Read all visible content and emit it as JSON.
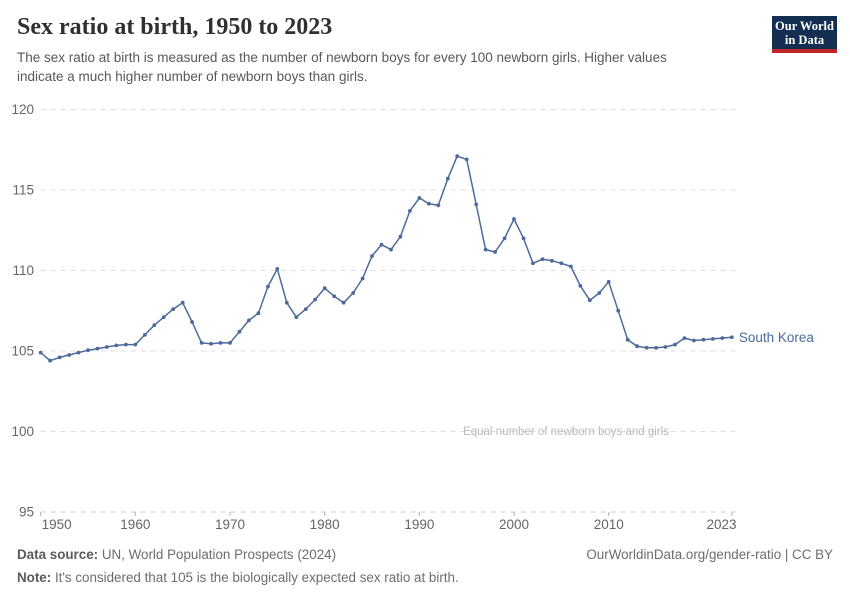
{
  "header": {
    "title": "Sex ratio at birth, 1950 to 2023",
    "subtitle": "The sex ratio at birth is measured as the number of newborn boys for every 100 newborn girls. Higher values indicate a much higher number of newborn boys than girls.",
    "logo": {
      "line1": "Our World",
      "line2": "in Data"
    }
  },
  "chart_data": {
    "type": "line",
    "title": "Sex ratio at birth, 1950 to 2023",
    "xlabel": "",
    "ylabel": "",
    "xlim": [
      1950,
      2023
    ],
    "ylim": [
      95,
      120
    ],
    "x_ticks": [
      1950,
      1960,
      1970,
      1980,
      1990,
      2000,
      2010,
      2023
    ],
    "y_ticks": [
      95,
      100,
      105,
      110,
      115,
      120
    ],
    "grid": "horizontal-dashed",
    "legend_position": "end-of-line-label",
    "annotation": "Equal number of newborn boys and girls",
    "annotation_value": 100,
    "series": [
      {
        "name": "South Korea",
        "color": "#4c6a9c",
        "x": [
          1950,
          1951,
          1952,
          1953,
          1954,
          1955,
          1956,
          1957,
          1958,
          1959,
          1960,
          1961,
          1962,
          1963,
          1964,
          1965,
          1966,
          1967,
          1968,
          1969,
          1970,
          1971,
          1972,
          1973,
          1974,
          1975,
          1976,
          1977,
          1978,
          1979,
          1980,
          1981,
          1982,
          1983,
          1984,
          1985,
          1986,
          1987,
          1988,
          1989,
          1990,
          1991,
          1992,
          1993,
          1994,
          1995,
          1996,
          1997,
          1998,
          1999,
          2000,
          2001,
          2002,
          2003,
          2004,
          2005,
          2006,
          2007,
          2008,
          2009,
          2010,
          2011,
          2012,
          2013,
          2014,
          2015,
          2016,
          2017,
          2018,
          2019,
          2020,
          2021,
          2022,
          2023
        ],
        "values": [
          104.9,
          104.4,
          104.6,
          104.75,
          104.9,
          105.05,
          105.15,
          105.25,
          105.35,
          105.4,
          105.4,
          106.0,
          106.6,
          107.1,
          107.6,
          108.0,
          106.8,
          105.5,
          105.45,
          105.5,
          105.5,
          106.2,
          106.9,
          107.35,
          109.0,
          110.1,
          108.0,
          107.1,
          107.6,
          108.2,
          108.9,
          108.4,
          108.0,
          108.6,
          109.5,
          110.9,
          111.6,
          111.3,
          112.1,
          113.7,
          114.5,
          114.15,
          114.05,
          115.7,
          117.1,
          116.9,
          114.1,
          111.3,
          111.15,
          112.0,
          113.2,
          112.0,
          110.45,
          110.7,
          110.6,
          110.45,
          110.25,
          109.05,
          108.15,
          108.6,
          109.3,
          107.5,
          105.7,
          105.3,
          105.2,
          105.2,
          105.25,
          105.4,
          105.8,
          105.65,
          105.7,
          105.75,
          105.8,
          105.85
        ]
      }
    ]
  },
  "footer": {
    "source_label": "Data source:",
    "source_text": " UN, World Population Prospects (2024)",
    "note_label": "Note:",
    "note_text": " It's considered that 105 is the biologically expected sex ratio at birth.",
    "link_text": "OurWorldinData.org/gender-ratio | CC BY"
  }
}
